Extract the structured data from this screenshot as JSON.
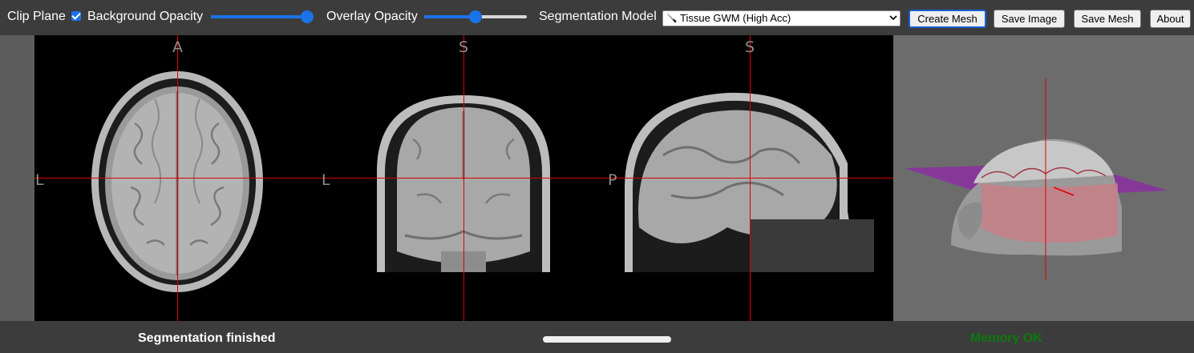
{
  "toolbar": {
    "clip_plane_label": "Clip Plane",
    "clip_plane_checked": true,
    "background_opacity_label": "Background Opacity",
    "background_opacity": 1.0,
    "overlay_opacity_label": "Overlay Opacity",
    "overlay_opacity": 0.5,
    "segmentation_model_label": "Segmentation Model",
    "segmentation_model_value": "Tissue GWM (High Acc)",
    "model_icon": "knife-icon",
    "buttons": {
      "create_mesh": "Create Mesh",
      "save_image": "Save Image",
      "save_mesh": "Save Mesh",
      "about": "About"
    }
  },
  "viewer": {
    "axial": {
      "top": "A",
      "left": "L"
    },
    "coronal": {
      "top": "S",
      "left": "L"
    },
    "sagittal": {
      "top": "S",
      "left": "P"
    },
    "crosshair_color": "#e00000"
  },
  "status": {
    "message": "Segmentation finished",
    "memory": "Memory OK",
    "memory_color": "#0b7a0b",
    "progress": 1.0
  }
}
